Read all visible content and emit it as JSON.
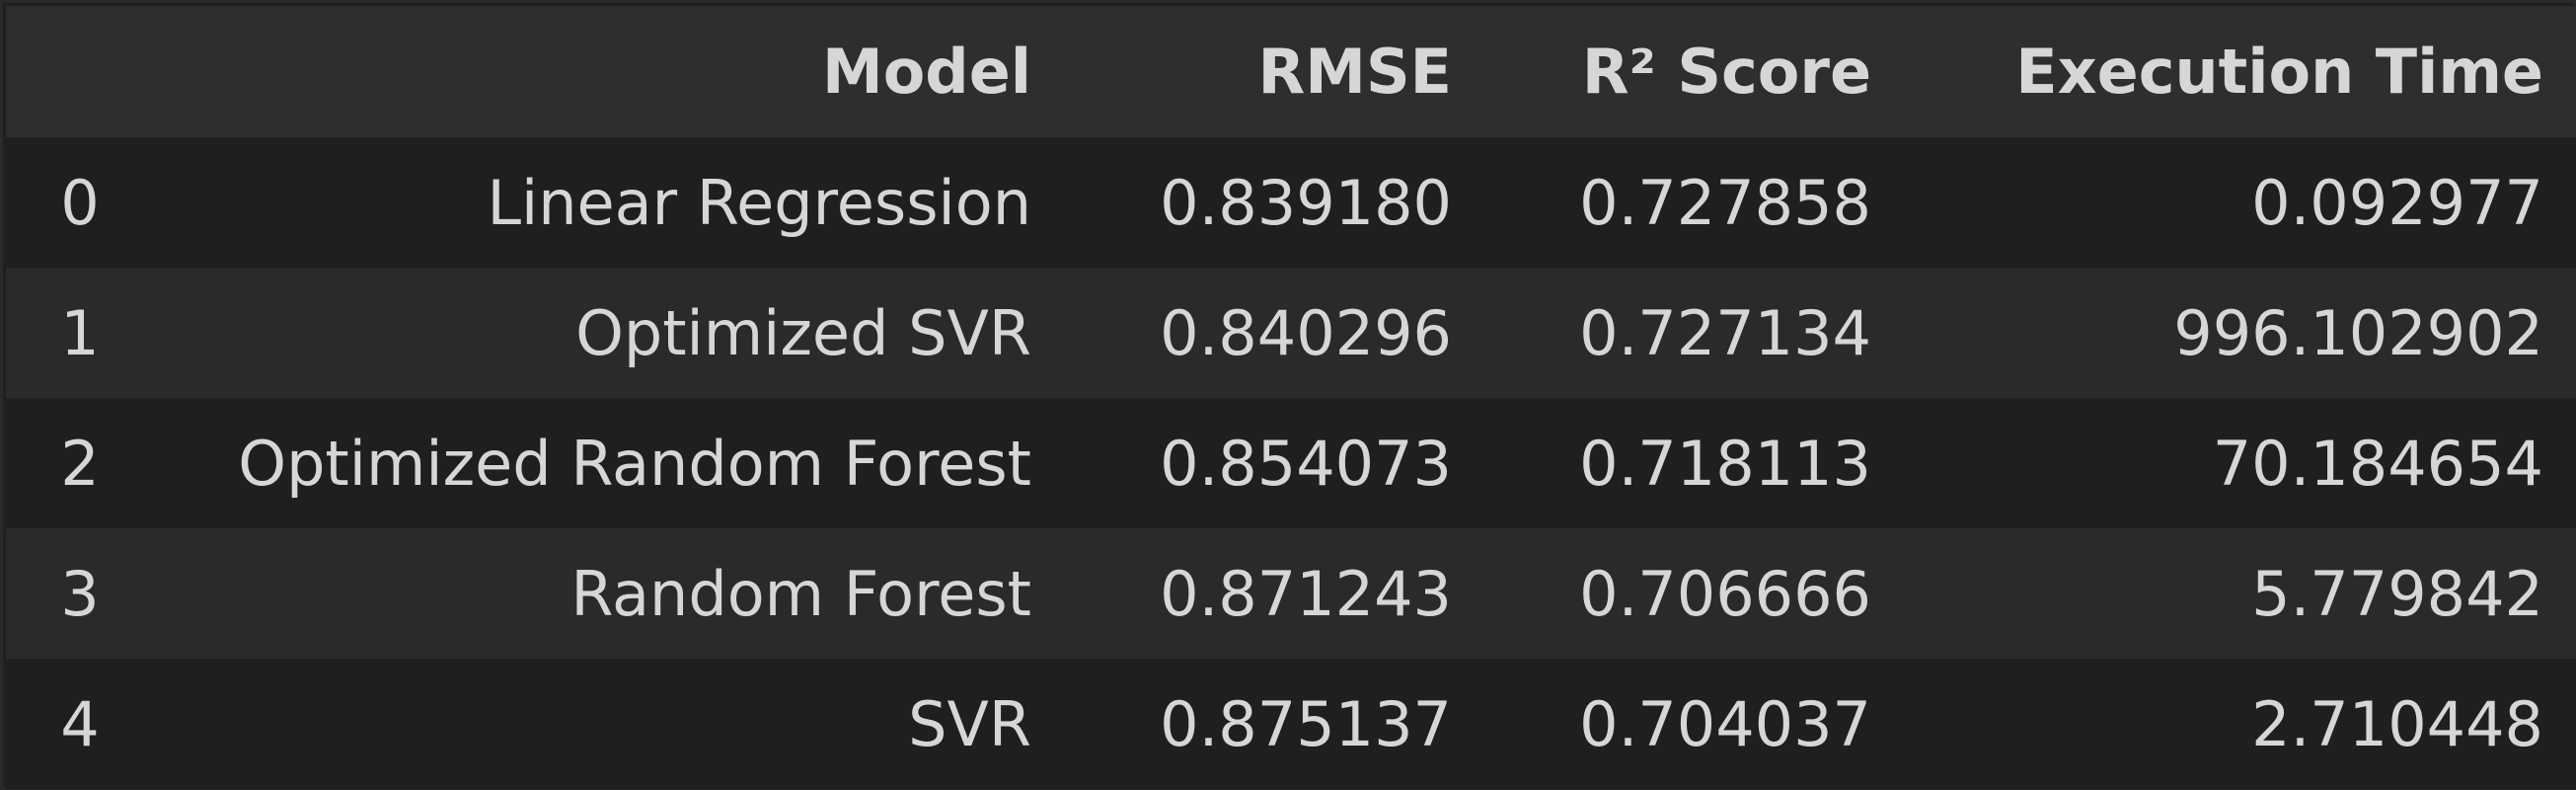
{
  "table": {
    "columns": [
      "",
      "Model",
      "RMSE",
      "R² Score",
      "Execution Time"
    ],
    "rows": [
      {
        "index": "0",
        "model": "Linear Regression",
        "rmse": "0.839180",
        "r2": "0.727858",
        "time": "0.092977"
      },
      {
        "index": "1",
        "model": "Optimized SVR",
        "rmse": "0.840296",
        "r2": "0.727134",
        "time": "996.102902"
      },
      {
        "index": "2",
        "model": "Optimized Random Forest",
        "rmse": "0.854073",
        "r2": "0.718113",
        "time": "70.184654"
      },
      {
        "index": "3",
        "model": "Random Forest",
        "rmse": "0.871243",
        "r2": "0.706666",
        "time": "5.779842"
      },
      {
        "index": "4",
        "model": "SVR",
        "rmse": "0.875137",
        "r2": "0.704037",
        "time": "2.710448"
      }
    ]
  },
  "colors": {
    "background": "#1f1f1f",
    "header_background": "#2e2e2e",
    "striped_row": "#2a2a2a",
    "text": "#d6d6d6"
  }
}
